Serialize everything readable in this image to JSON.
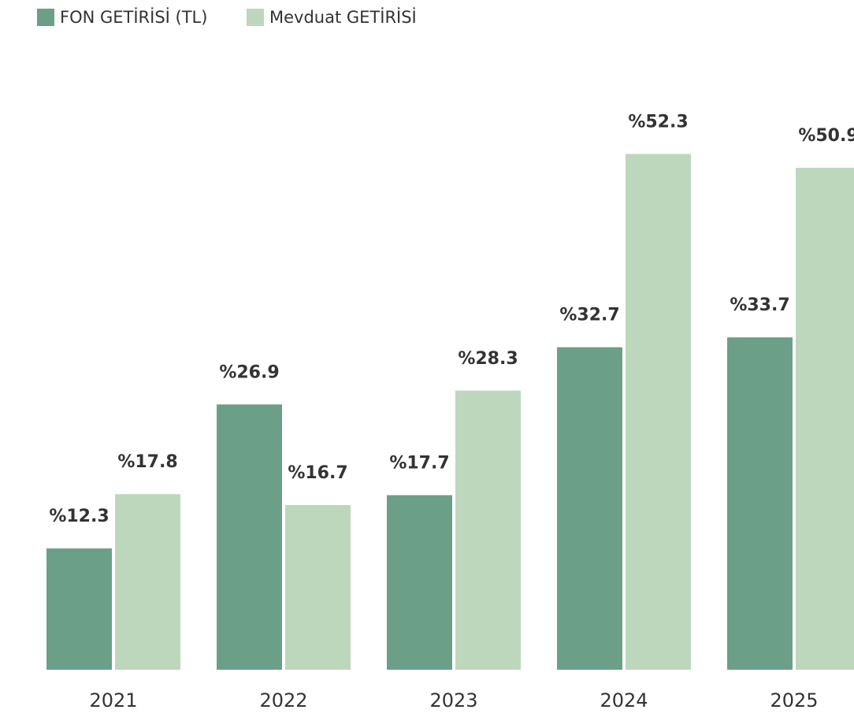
{
  "chart_data": {
    "type": "bar",
    "categories": [
      "2021",
      "2022",
      "2023",
      "2024",
      "2025"
    ],
    "series": [
      {
        "name": "FON GETİRİSİ (TL)",
        "color": "#6b9f87",
        "values": [
          12.3,
          26.9,
          17.7,
          32.7,
          33.7
        ],
        "value_labels": [
          "%12.3",
          "%26.9",
          "%17.7",
          "%32.7",
          "%33.7"
        ]
      },
      {
        "name": "Mevduat GETİRİSİ",
        "color": "#bdd7bc",
        "values": [
          17.8,
          16.7,
          28.3,
          52.3,
          50.9
        ],
        "value_labels": [
          "%17.8",
          "%16.7",
          "%28.3",
          "%52.3",
          "%50.9"
        ]
      }
    ],
    "ylim": [
      0,
      60
    ],
    "legend": "top-left"
  }
}
